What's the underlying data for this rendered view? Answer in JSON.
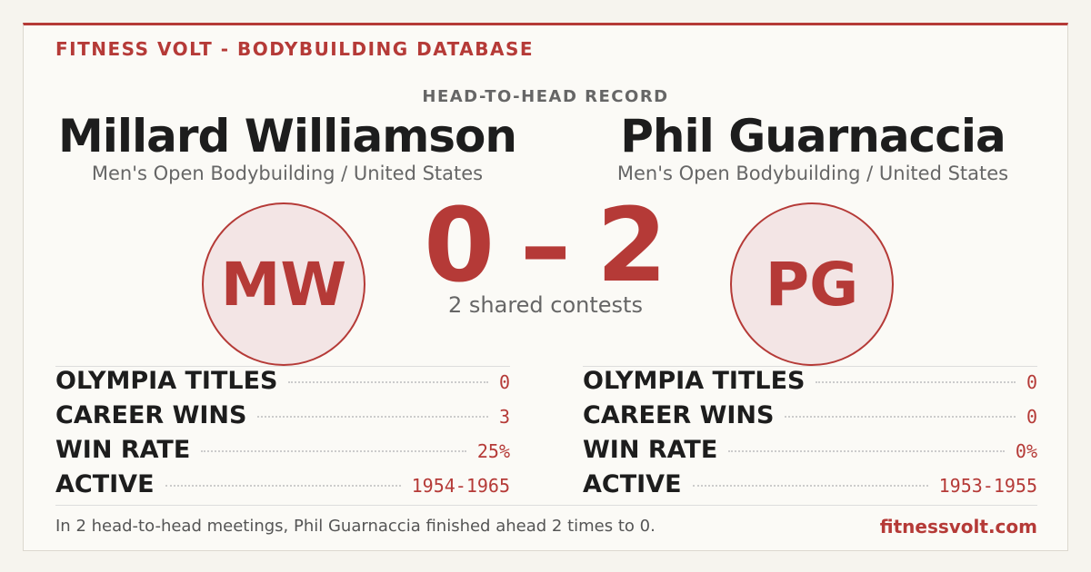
{
  "header": {
    "brand": "FITNESS VOLT - BODYBUILDING DATABASE",
    "label": "HEAD-TO-HEAD RECORD"
  },
  "athletes": [
    {
      "name": "Millard Williamson",
      "division": "Men's Open Bodybuilding / United States",
      "initials": "MW",
      "stats": [
        {
          "label": "OLYMPIA TITLES",
          "value": 0
        },
        {
          "label": "CAREER WINS",
          "value": 3
        },
        {
          "label": "WIN RATE",
          "value": "25%"
        },
        {
          "label": "ACTIVE",
          "value": "1954-1965"
        }
      ]
    },
    {
      "name": "Phil Guarnaccia",
      "division": "Men's Open Bodybuilding / United States",
      "initials": "PG",
      "stats": [
        {
          "label": "OLYMPIA TITLES",
          "value": 0
        },
        {
          "label": "CAREER WINS",
          "value": 0
        },
        {
          "label": "WIN RATE",
          "value": "0%"
        },
        {
          "label": "ACTIVE",
          "value": "1953-1955"
        }
      ]
    }
  ],
  "score": {
    "left": 0,
    "separator": "–",
    "right": 2,
    "note": "2 shared contests"
  },
  "footer": {
    "summary": "In 2 head-to-head meetings, Phil Guarnaccia finished ahead 2 times to 0.",
    "site": "fitnessvolt.com"
  }
}
